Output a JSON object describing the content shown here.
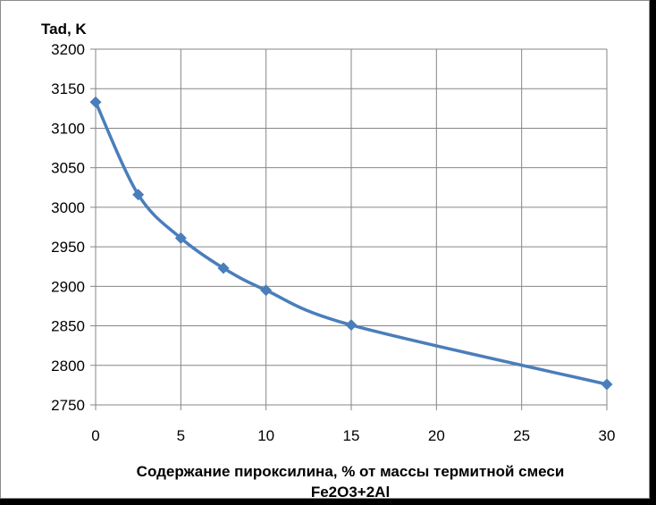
{
  "chart_data": {
    "type": "line",
    "title": "",
    "ylabel": "Tad, K",
    "xlabel_lines": [
      "Содержание пироксилина, % от массы термитной смеси",
      "Fe2O3+2Al"
    ],
    "xlim": [
      0,
      30
    ],
    "ylim": [
      2750,
      3200
    ],
    "x_ticks": [
      0,
      5,
      10,
      15,
      20,
      25,
      30
    ],
    "y_ticks": [
      2750,
      2800,
      2850,
      2900,
      2950,
      3000,
      3050,
      3100,
      3150,
      3200
    ],
    "grid": true,
    "smooth": true,
    "marker": "diamond",
    "series": [
      {
        "color": "#4a7ebb",
        "x": [
          0,
          2.5,
          5,
          7.5,
          10,
          15,
          30
        ],
        "y": [
          3133,
          3016,
          2961,
          2923,
          2895,
          2851,
          2776
        ]
      }
    ]
  }
}
